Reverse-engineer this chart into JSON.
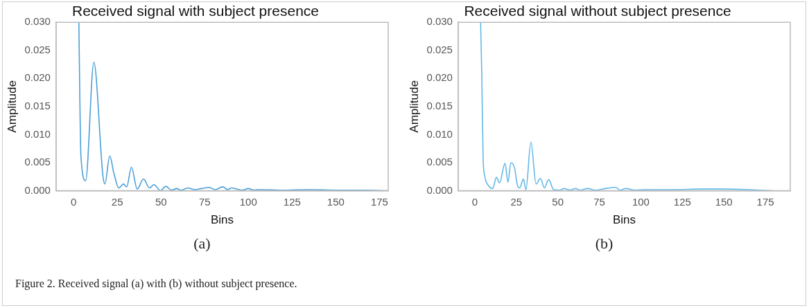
{
  "chart_data": [
    {
      "type": "line",
      "title": "Received signal with subject presence",
      "xlabel": "Bins",
      "ylabel": "Amplitude",
      "xlim": [
        -10,
        180
      ],
      "xticks": [
        0,
        25,
        50,
        75,
        100,
        125,
        150,
        175
      ],
      "ylim": [
        0,
        0.03
      ],
      "yticks": [
        {
          "value": 0,
          "label": "0.000"
        },
        {
          "value": 0.005,
          "label": "0.005"
        },
        {
          "value": 0.01,
          "label": "0.010"
        },
        {
          "value": 0.015,
          "label": "0.015"
        },
        {
          "value": 0.02,
          "label": "0.020"
        },
        {
          "value": 0.025,
          "label": "0.025"
        },
        {
          "value": 0.03,
          "label": "0.030"
        }
      ],
      "grid": false,
      "legend": false,
      "marker": "none",
      "annotations": [
        "(a)"
      ],
      "series": [
        {
          "color": "#4a9fd8",
          "x": [
            3,
            4.2,
            6.9,
            11.6,
            16.8,
            17.9,
            20.7,
            23,
            25.9,
            28.5,
            30.4,
            33.1,
            36.4,
            40,
            43.4,
            46,
            49.7,
            52.8,
            56,
            59,
            61.4,
            65.4,
            69.3,
            73.2,
            77.6,
            81,
            85.4,
            88,
            90.4,
            96.7,
            100,
            103,
            106,
            120,
            135,
            150,
            165,
            180
          ],
          "values": [
            0.03,
            0.0062,
            0.0018,
            0.0229,
            0.0026,
            0.0012,
            0.0062,
            0.0032,
            0.0005,
            0.0012,
            0.0007,
            0.0042,
            0.0003,
            0.0021,
            0.0005,
            0.0011,
            0.0,
            0.0008,
            0.0001,
            0.0004,
            0.0001,
            0.0005,
            0.0002,
            0.0004,
            0.0006,
            0.0002,
            0.0007,
            0.0002,
            0.0005,
            0.0001,
            0.0004,
            0.0001,
            0.0002,
            0.0001,
            0.0002,
            0.0001,
            0.0001,
            0.0
          ]
        }
      ]
    },
    {
      "type": "line",
      "title": "Received signal without subject presence",
      "xlabel": "Bins",
      "ylabel": "Amplitude",
      "xlim": [
        -10,
        190
      ],
      "xticks": [
        0,
        25,
        50,
        75,
        100,
        125,
        150,
        175
      ],
      "ylim": [
        0,
        0.03
      ],
      "yticks": [
        {
          "value": 0,
          "label": "0.000"
        },
        {
          "value": 0.005,
          "label": "0.005"
        },
        {
          "value": 0.01,
          "label": "0.010"
        },
        {
          "value": 0.015,
          "label": "0.015"
        },
        {
          "value": 0.02,
          "label": "0.020"
        },
        {
          "value": 0.025,
          "label": "0.025"
        },
        {
          "value": 0.03,
          "label": "0.030"
        }
      ],
      "grid": false,
      "legend": false,
      "marker": "none",
      "annotations": [
        "(b)",
        "Figure 2. Received signal (a) with (b) without subject presence."
      ],
      "series": [
        {
          "color": "#62b8e6",
          "x": [
            3.5,
            4.2,
            5,
            6.1,
            8,
            10.8,
            13,
            14.9,
            18.2,
            20,
            21.7,
            24,
            25.5,
            27,
            29.3,
            30.8,
            33.8,
            36.9,
            39.5,
            41.9,
            44.5,
            47.5,
            51.3,
            53.6,
            57.4,
            60.7,
            63.4,
            68,
            72.5,
            78.6,
            84.7,
            87.7,
            90.7,
            96.8,
            104,
            120,
            137,
            148,
            165,
            180
          ],
          "values": [
            0.03,
            0.0209,
            0.006,
            0.0025,
            0.001,
            0.0004,
            0.0024,
            0.0014,
            0.0049,
            0.0015,
            0.005,
            0.004,
            0.0012,
            0.0005,
            0.0021,
            0.0002,
            0.0087,
            0.0012,
            0.0022,
            0.0005,
            0.002,
            0.0002,
            0.0001,
            0.0004,
            0.0001,
            0.0004,
            0.0001,
            0.0004,
            0.0001,
            0.0004,
            0.0006,
            0.0001,
            0.0004,
            0.0001,
            0.0002,
            0.0002,
            0.0003,
            0.0003,
            0.0002,
            0.0
          ]
        }
      ]
    }
  ]
}
